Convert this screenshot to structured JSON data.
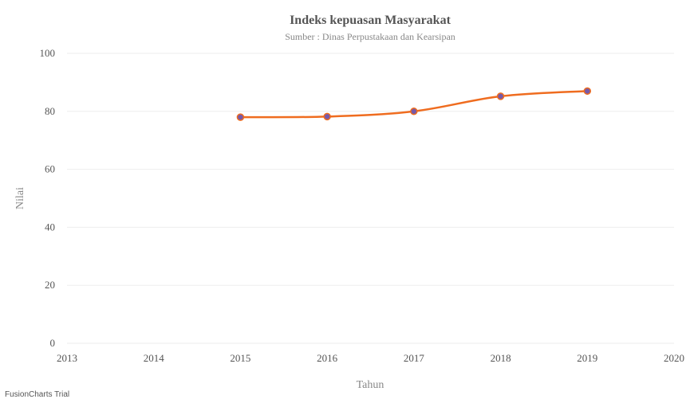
{
  "chart_data": {
    "type": "line",
    "title": "Indeks kepuasan Masyarakat",
    "subtitle": "Sumber : Dinas Perpustakaan dan Kearsipan",
    "xlabel": "Tahun",
    "ylabel": "Nilai",
    "x_ticks": [
      "2013",
      "2014",
      "2015",
      "2016",
      "2017",
      "2018",
      "2019",
      "2020"
    ],
    "xlim": [
      2013,
      2020
    ],
    "y_ticks": [
      "0",
      "20",
      "40",
      "60",
      "80",
      "100"
    ],
    "ylim": [
      0,
      100
    ],
    "grid": true,
    "series": [
      {
        "x": [
          2015,
          2016,
          2017,
          2018,
          2019
        ],
        "values": [
          78,
          78.2,
          80,
          85.2,
          87
        ],
        "color": "#ef6c1f",
        "marker_color": "#7759a8"
      }
    ]
  },
  "watermark": "FusionCharts Trial"
}
